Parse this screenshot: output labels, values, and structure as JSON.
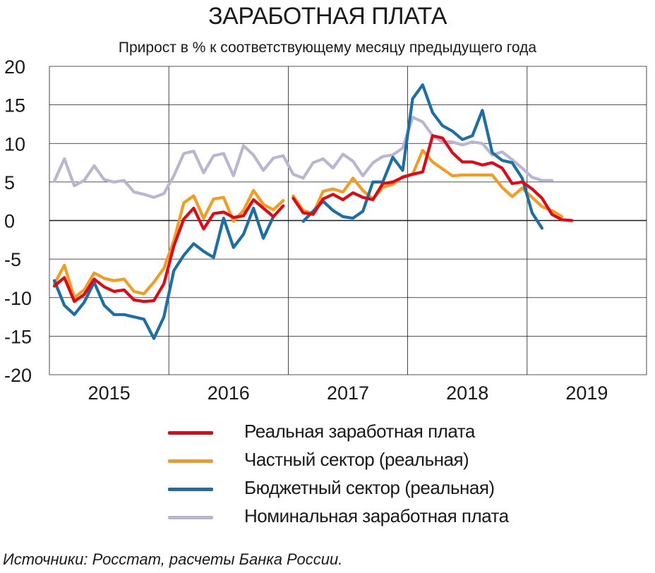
{
  "chart_data": {
    "type": "line",
    "title": "ЗАРАБОТНАЯ ПЛАТА",
    "subtitle": "Прирост в % к соответствующему месяцу предыдущего года",
    "xlabel": "",
    "ylabel": "",
    "ylim": [
      -20,
      20
    ],
    "xlim": [
      "2015-01",
      "2019-12"
    ],
    "grid": true,
    "legend_position": "bottom",
    "y_ticks": [
      "20",
      "15",
      "10",
      "5",
      "0",
      "-5",
      "-10",
      "-15",
      "-20"
    ],
    "x_tick_labels": [
      "2015",
      "2016",
      "2017",
      "2018",
      "2019"
    ],
    "series": [
      {
        "name": "Реальная заработная плата",
        "color": "#e30613",
        "start": "2015-01",
        "values": [
          -8.5,
          -7.4,
          -10.5,
          -9.6,
          -7.6,
          -8.6,
          -9.2,
          -9.0,
          -10.3,
          -10.5,
          -10.4,
          -8.2,
          -3.3,
          0.2,
          1.6,
          -1.1,
          0.9,
          1.1,
          0.4,
          0.6,
          2.7,
          1.6,
          0.5,
          1.9,
          2.9,
          1.0,
          0.8,
          2.8,
          3.4,
          2.7,
          3.6,
          3.0,
          2.7,
          4.8,
          5.0,
          5.6,
          6.0,
          6.3,
          11.0,
          10.7,
          8.8,
          7.6,
          7.6,
          7.2,
          7.5,
          6.8,
          4.8,
          5.0,
          4.1,
          2.9,
          0.8,
          0.1,
          0.0
        ],
        "gap_after_index": 24
      },
      {
        "name": "Частный сектор (реальная)",
        "color": "#f39c1f",
        "start": "2015-01",
        "values": [
          -8.2,
          -5.8,
          -10.0,
          -9.0,
          -6.8,
          -7.5,
          -7.8,
          -7.6,
          -9.2,
          -9.5,
          -8.0,
          -6.2,
          -2.6,
          2.3,
          3.2,
          0.3,
          2.8,
          3.0,
          -0.1,
          1.3,
          3.9,
          2.1,
          1.4,
          2.6,
          3.2,
          1.3,
          0.9,
          3.8,
          4.1,
          3.7,
          5.5,
          3.9,
          2.8,
          4.3,
          4.7,
          5.7,
          6.0,
          9.1,
          7.6,
          6.7,
          5.8,
          5.9,
          5.9,
          5.9,
          5.9,
          4.3,
          3.1,
          4.2,
          3.0,
          1.8,
          1.3,
          0.5
        ],
        "gap_after_index": 24
      },
      {
        "name": "Бюджетный сектор (реальная)",
        "color": "#1a6fa6",
        "start": "2015-01",
        "values": [
          -7.8,
          -11.0,
          -12.2,
          -10.6,
          -8.0,
          -11.0,
          -12.2,
          -12.2,
          -12.5,
          -12.8,
          -15.3,
          -12.5,
          -6.5,
          -4.5,
          -3.0,
          -4.0,
          -4.8,
          0.3,
          -3.5,
          -1.8,
          1.6,
          -2.3,
          0.5,
          2.0,
          null,
          -0.1,
          1.2,
          2.5,
          1.3,
          0.5,
          0.3,
          1.2,
          5.0,
          5.0,
          8.2,
          6.5,
          15.8,
          17.6,
          14.0,
          12.3,
          11.6,
          10.5,
          11.0,
          14.3,
          8.8,
          7.8,
          7.5,
          5.5,
          1.0,
          -1.0
        ],
        "gap_after_index": 23
      },
      {
        "name": "Номинальная заработная плата",
        "color": "#b9b5d2",
        "start": "2015-01",
        "values": [
          5.1,
          8.0,
          4.5,
          5.2,
          7.1,
          5.3,
          5.0,
          5.2,
          3.7,
          3.4,
          3.0,
          3.5,
          5.8,
          8.7,
          9.0,
          6.2,
          8.4,
          8.7,
          5.8,
          9.7,
          8.5,
          6.5,
          8.1,
          8.4,
          6.0,
          5.5,
          7.5,
          8.0,
          6.8,
          8.6,
          7.7,
          5.8,
          7.5,
          8.3,
          8.5,
          9.4,
          13.4,
          12.8,
          11.0,
          10.2,
          10.2,
          9.8,
          10.2,
          10.0,
          8.5,
          8.9,
          7.9,
          6.8,
          5.6,
          5.2,
          5.2
        ]
      }
    ]
  },
  "source_note": "Источники: Росстат, расчеты Банка России."
}
